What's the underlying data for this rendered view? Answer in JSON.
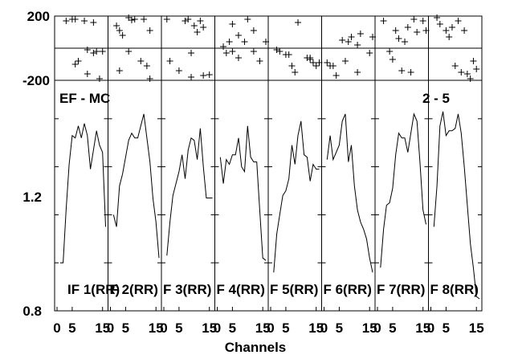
{
  "chart_data": {
    "type": "line",
    "xlabel": "Channels",
    "top_label_left": "EF - MC",
    "top_label_right": "2 - 5",
    "top_panel": {
      "y_tick_labels": [
        "200",
        "-200"
      ],
      "ylim": [
        -200,
        200
      ],
      "points": [
        [
          [
            3,
            170
          ],
          [
            5,
            180
          ],
          [
            6,
            180
          ],
          [
            9,
            170
          ],
          [
            12,
            160
          ],
          [
            6,
            -100
          ],
          [
            7,
            -80
          ],
          [
            10,
            -10
          ],
          [
            12,
            -30
          ],
          [
            13,
            -20
          ],
          [
            15,
            -20
          ],
          [
            10,
            -160
          ],
          [
            14,
            -190
          ]
        ],
        [
          [
            2,
            140
          ],
          [
            3,
            110
          ],
          [
            4,
            80
          ],
          [
            6,
            190
          ],
          [
            7,
            175
          ],
          [
            8,
            180
          ],
          [
            11,
            180
          ],
          [
            13,
            110
          ],
          [
            6,
            -20
          ],
          [
            10,
            -80
          ],
          [
            12,
            -110
          ],
          [
            3,
            -140
          ],
          [
            13,
            -190
          ]
        ],
        [
          [
            1,
            180
          ],
          [
            7,
            170
          ],
          [
            8,
            180
          ],
          [
            10,
            140
          ],
          [
            12,
            170
          ],
          [
            13,
            130
          ],
          [
            11,
            100
          ],
          [
            9,
            -30
          ],
          [
            2,
            -80
          ],
          [
            5,
            -140
          ],
          [
            9,
            -180
          ],
          [
            13,
            -170
          ],
          [
            15,
            -165
          ]
        ],
        [
          [
            2,
            10
          ],
          [
            3,
            -30
          ],
          [
            4,
            40
          ],
          [
            5,
            -20
          ],
          [
            7,
            80
          ],
          [
            9,
            40
          ],
          [
            12,
            110
          ],
          [
            12,
            -20
          ],
          [
            7,
            -60
          ],
          [
            14,
            -80
          ],
          [
            16,
            40
          ],
          [
            5,
            150
          ],
          [
            10,
            180
          ]
        ],
        [
          [
            2,
            -10
          ],
          [
            3,
            -20
          ],
          [
            5,
            -40
          ],
          [
            6,
            -40
          ],
          [
            7,
            -110
          ],
          [
            8,
            -150
          ],
          [
            9,
            160
          ],
          [
            12,
            -60
          ],
          [
            13,
            -60
          ],
          [
            14,
            -90
          ],
          [
            16,
            -90
          ],
          [
            15,
            -110
          ],
          [
            13,
            -70
          ]
        ],
        [
          [
            1,
            -90
          ],
          [
            2,
            -110
          ],
          [
            3,
            -110
          ],
          [
            4,
            -170
          ],
          [
            6,
            50
          ],
          [
            8,
            40
          ],
          [
            9,
            70
          ],
          [
            11,
            20
          ],
          [
            12,
            90
          ],
          [
            15,
            -30
          ],
          [
            16,
            70
          ],
          [
            7,
            -80
          ],
          [
            11,
            -150
          ]
        ],
        [
          [
            2,
            170
          ],
          [
            4,
            -20
          ],
          [
            6,
            110
          ],
          [
            7,
            60
          ],
          [
            9,
            40
          ],
          [
            10,
            130
          ],
          [
            12,
            180
          ],
          [
            13,
            100
          ],
          [
            15,
            170
          ],
          [
            16,
            110
          ],
          [
            8,
            -140
          ],
          [
            11,
            -150
          ],
          [
            5,
            -70
          ]
        ],
        [
          [
            2,
            190
          ],
          [
            3,
            150
          ],
          [
            5,
            110
          ],
          [
            6,
            70
          ],
          [
            8,
            -110
          ],
          [
            10,
            -150
          ],
          [
            12,
            -160
          ],
          [
            13,
            -190
          ],
          [
            15,
            -130
          ],
          [
            7,
            130
          ],
          [
            9,
            170
          ],
          [
            11,
            110
          ],
          [
            14,
            -80
          ]
        ]
      ]
    },
    "bottom_panel": {
      "y_tick_labels": [
        "0.8",
        "1.2"
      ],
      "ylim": [
        0.8,
        1.76
      ],
      "y_ticks": [
        0.8,
        1.0,
        1.2,
        1.4,
        1.6
      ],
      "xlim": [
        0,
        16
      ],
      "x_tick_labels": [
        "0",
        "5",
        "15"
      ],
      "x_ticks": [
        0,
        5,
        15
      ],
      "series": [
        {
          "label": "IF 1(RR)",
          "x": [
            1,
            2,
            3,
            4,
            5,
            6,
            7,
            8,
            9,
            10,
            11,
            12,
            13,
            14,
            15,
            16
          ],
          "y": [
            1.0,
            1.0,
            1.22,
            1.41,
            1.53,
            1.52,
            1.57,
            1.52,
            1.58,
            1.53,
            1.39,
            1.47,
            1.55,
            1.49,
            1.46,
            1.15
          ]
        },
        {
          "label": "F 2(RR)",
          "x": [
            1,
            2,
            3,
            4,
            5,
            6,
            7,
            8,
            9,
            10,
            11,
            12,
            13,
            14,
            15,
            16
          ],
          "y": [
            1.2,
            1.15,
            1.32,
            1.37,
            1.44,
            1.51,
            1.54,
            1.52,
            1.52,
            1.57,
            1.62,
            1.52,
            1.42,
            1.27,
            1.17,
            1.02
          ]
        },
        {
          "label": "F 3(RR)",
          "x": [
            1,
            2,
            3,
            4,
            5,
            6,
            7,
            8,
            9,
            10,
            11,
            12,
            13,
            14,
            15,
            16
          ],
          "y": [
            1.03,
            1.17,
            1.28,
            1.33,
            1.38,
            1.45,
            1.35,
            1.47,
            1.52,
            1.51,
            1.43,
            1.56,
            1.4,
            1.27,
            1.27,
            1.27
          ]
        },
        {
          "label": "F 4(RR)",
          "x": [
            1,
            2,
            3,
            4,
            5,
            6,
            7,
            8,
            9,
            10,
            11,
            12,
            13,
            14,
            15,
            16
          ],
          "y": [
            1.44,
            1.33,
            1.43,
            1.41,
            1.45,
            1.45,
            1.52,
            1.4,
            1.38,
            1.57,
            1.44,
            1.42,
            1.42,
            1.22,
            1.02,
            1.01
          ]
        },
        {
          "label": "F 5(RR)",
          "x": [
            1,
            2,
            3,
            4,
            5,
            6,
            7,
            8,
            9,
            10,
            11,
            12,
            13,
            14,
            15,
            16
          ],
          "y": [
            0.96,
            1.12,
            1.2,
            1.28,
            1.3,
            1.35,
            1.49,
            1.41,
            1.53,
            1.59,
            1.45,
            1.44,
            1.34,
            1.41,
            1.39,
            1.39
          ]
        },
        {
          "label": "F 6(RR)",
          "x": [
            1,
            2,
            3,
            4,
            5,
            6,
            7,
            8,
            9,
            10,
            11,
            12,
            13,
            14,
            15,
            16
          ],
          "y": [
            1.43,
            1.53,
            1.43,
            1.46,
            1.49,
            1.59,
            1.62,
            1.42,
            1.49,
            1.32,
            1.22,
            1.17,
            1.14,
            1.1,
            1.02,
            0.96
          ]
        },
        {
          "label": "F 7(RR)",
          "x": [
            1,
            2,
            3,
            4,
            5,
            6,
            7,
            8,
            9,
            10,
            11,
            12,
            13,
            14,
            15,
            16
          ],
          "y": [
            0.98,
            1.14,
            1.24,
            1.25,
            1.31,
            1.45,
            1.54,
            1.52,
            1.52,
            1.46,
            1.54,
            1.62,
            1.59,
            1.42,
            1.22,
            1.16
          ]
        },
        {
          "label": "F 8(RR)",
          "x": [
            1,
            2,
            3,
            4,
            5,
            6,
            7,
            8,
            9,
            10,
            11,
            12,
            13,
            14,
            15,
            16
          ],
          "y": [
            1.15,
            1.32,
            1.57,
            1.63,
            1.53,
            1.55,
            1.55,
            1.56,
            1.62,
            1.54,
            1.4,
            1.24,
            1.08,
            0.98,
            0.86,
            0.85
          ]
        }
      ]
    }
  }
}
